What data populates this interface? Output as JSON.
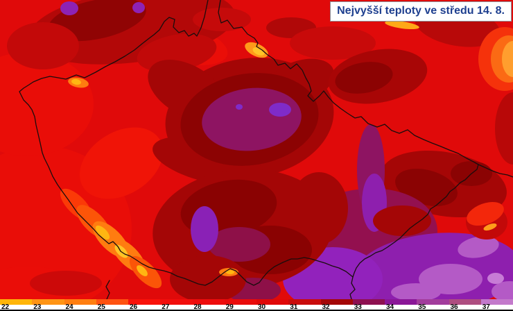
{
  "title_box": {
    "label": "Nejvyšší teploty ve středu 14. 8.",
    "text_color": "#1e3f8f",
    "background": "#ffffff",
    "border_color": "#8f969e"
  },
  "map": {
    "subject": "maximum temperature forecast map of the Czech Republic",
    "country_border_color": "#1a0d0d",
    "base_color": "#e00a0a",
    "hot_area_colors": {
      "dark_red_31": "#c90c0c",
      "darker_red_32": "#a40707",
      "maroon": "#8a0303",
      "wine_33": "#8e1050",
      "violet_34": "#8a1697",
      "bright_violet": "#7f2bc9",
      "orchid_35": "#a23c9c",
      "light_orchid_36": "#b45ac6",
      "lilac_37": "#c379cb"
    },
    "cool_area_colors": {
      "yellow_22": "#ffb508",
      "orange_23": "#ff9414",
      "orange_24": "#ff7e10",
      "orange_red_25": "#ff5210"
    }
  },
  "legend": {
    "segments": [
      {
        "label": "22",
        "color": "#ffb508"
      },
      {
        "label": "23",
        "color": "#ff9414"
      },
      {
        "label": "24",
        "color": "#ff7e10"
      },
      {
        "label": "25",
        "color": "#ff5210"
      },
      {
        "label": "26",
        "color": "#f9120a"
      },
      {
        "label": "27",
        "color": "#f20e0c"
      },
      {
        "label": "28",
        "color": "#ee0c0c"
      },
      {
        "label": "29",
        "color": "#e90b0b"
      },
      {
        "label": "30",
        "color": "#e00808"
      },
      {
        "label": "31",
        "color": "#c90c0c"
      },
      {
        "label": "32",
        "color": "#a40707"
      },
      {
        "label": "33",
        "color": "#8e1050"
      },
      {
        "label": "34",
        "color": "#8a1697"
      },
      {
        "label": "35",
        "color": "#a23c9c"
      },
      {
        "label": "36",
        "color": "#ae4e80"
      },
      {
        "label": "37",
        "color": "#c379cb"
      }
    ]
  }
}
